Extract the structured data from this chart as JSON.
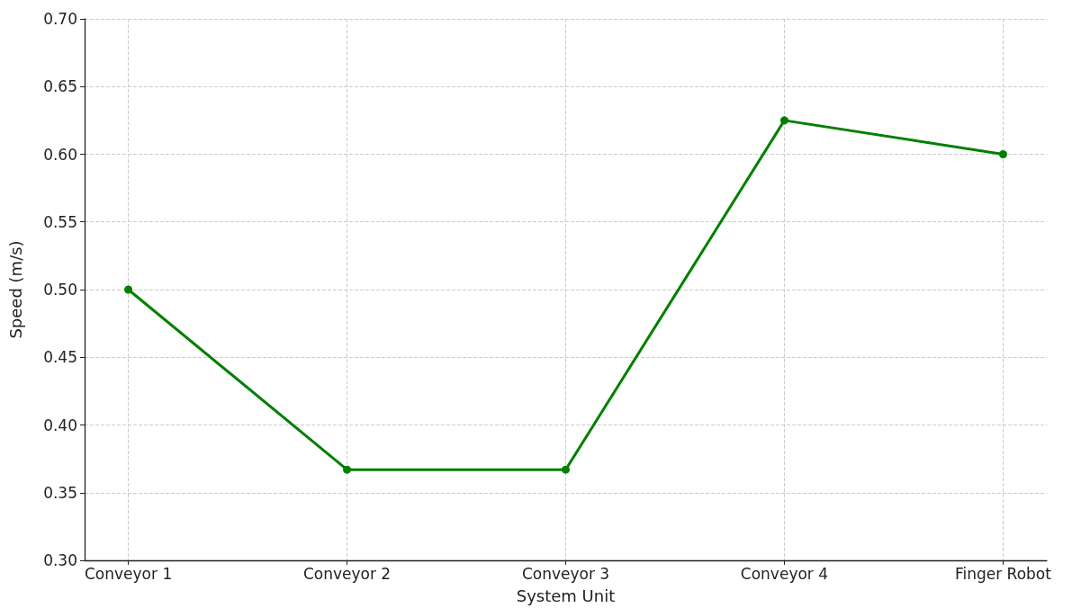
{
  "chart_data": {
    "type": "line",
    "xlabel": "System Unit",
    "ylabel": "Speed (m/s)",
    "categories": [
      "Conveyor 1",
      "Conveyor 2",
      "Conveyor 3",
      "Conveyor 4",
      "Finger Robot"
    ],
    "series": [
      {
        "color": "#008000",
        "values": [
          0.5,
          0.367,
          0.367,
          0.625,
          0.6
        ]
      }
    ],
    "ylim": [
      0.3,
      0.7
    ],
    "yticks": [
      {
        "value": 0.3,
        "label": "0.30"
      },
      {
        "value": 0.35,
        "label": "0.35"
      },
      {
        "value": 0.4,
        "label": "0.40"
      },
      {
        "value": 0.45,
        "label": "0.45"
      },
      {
        "value": 0.5,
        "label": "0.50"
      },
      {
        "value": 0.55,
        "label": "0.55"
      },
      {
        "value": 0.6,
        "label": "0.60"
      },
      {
        "value": 0.65,
        "label": "0.65"
      },
      {
        "value": 0.7,
        "label": "0.70"
      }
    ],
    "grid": true,
    "marker": "circle",
    "line_style": "solid"
  }
}
